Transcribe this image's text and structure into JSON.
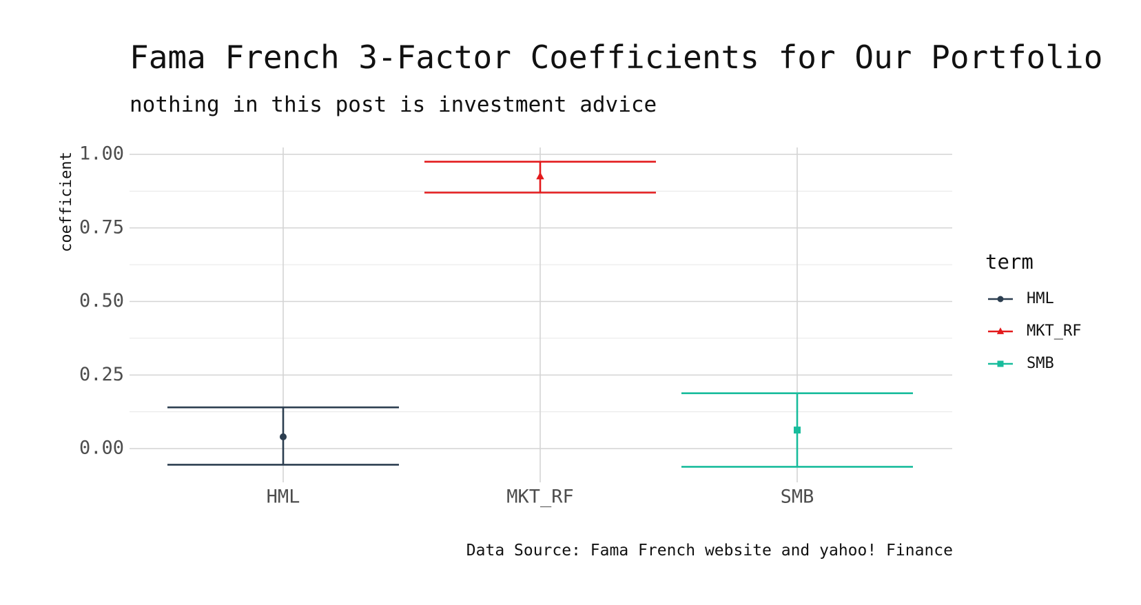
{
  "chart_data": {
    "type": "errorbar",
    "title": "Fama French 3-Factor Coefficients for Our Portfolio",
    "subtitle": "nothing in this post is investment advice",
    "caption": "Data Source: Fama French website and yahoo! Finance",
    "xlabel": "",
    "ylabel": "coefficient",
    "ylim": [
      -0.08,
      1.02
    ],
    "yticks": [
      "0.00",
      "0.25",
      "0.50",
      "0.75",
      "1.00"
    ],
    "grid": true,
    "legend": {
      "title": "term",
      "position": "right"
    },
    "categories": [
      "HML",
      "MKT_RF",
      "SMB"
    ],
    "series": [
      {
        "name": "HML",
        "estimate": 0.04,
        "conf_low": -0.055,
        "conf_high": 0.14,
        "color": "#2c3e50",
        "shape": "circle"
      },
      {
        "name": "MKT_RF",
        "estimate": 0.925,
        "conf_low": 0.87,
        "conf_high": 0.975,
        "color": "#e31a1c",
        "shape": "triangle"
      },
      {
        "name": "SMB",
        "estimate": 0.063,
        "conf_low": -0.062,
        "conf_high": 0.188,
        "color": "#18bc9c",
        "shape": "square"
      }
    ]
  }
}
